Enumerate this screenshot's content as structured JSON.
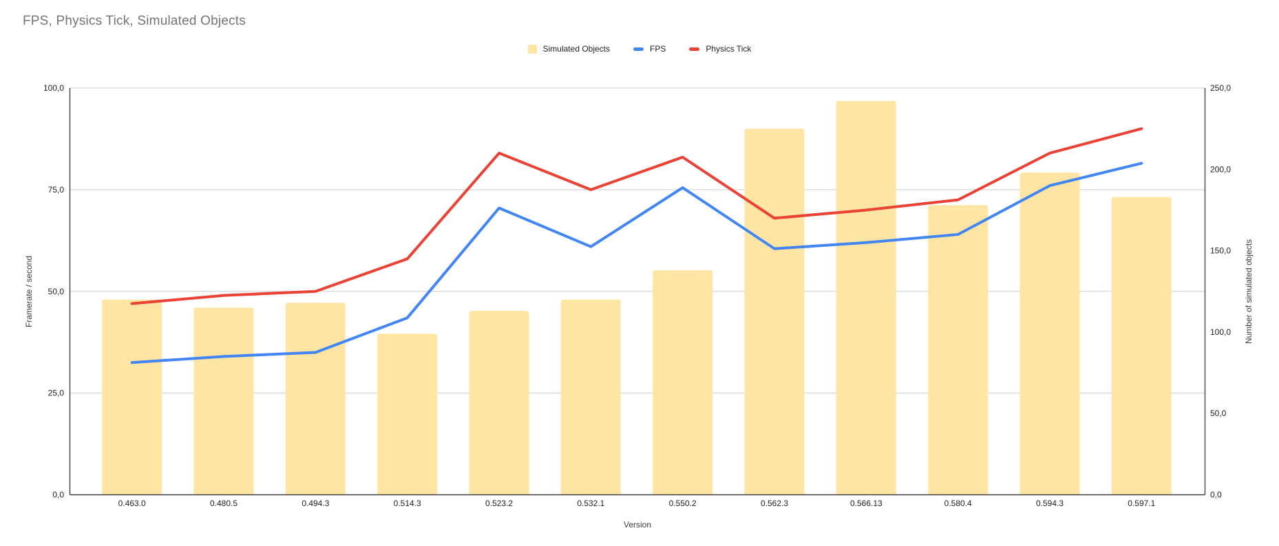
{
  "title": "FPS, Physics Tick, Simulated Objects",
  "chart_data": {
    "type": "combo",
    "x": [
      "0.463.0",
      "0.480.5",
      "0.494.3",
      "0.514.3",
      "0.523.2",
      "0.532.1",
      "0.550.2",
      "0.562.3",
      "0.566.13",
      "0.580.4",
      "0.594.3",
      "0.597.1"
    ],
    "xlabel": "Version",
    "ylabel_left": "Framerate / second",
    "ylabel_right": "Number of simulated objects",
    "y_left_range": [
      0,
      100
    ],
    "y_right_range": [
      0,
      250
    ],
    "y_left_ticks": [
      "0,0",
      "25,0",
      "50,0",
      "75,0",
      "100,0"
    ],
    "y_right_ticks": [
      "0,0",
      "50,0",
      "100,0",
      "150,0",
      "200,0",
      "250,0"
    ],
    "grid": "horizontal, left axis only",
    "legend_position": "top",
    "series": [
      {
        "name": "Simulated Objects",
        "type": "bar",
        "axis": "right",
        "color": "#ffe5a4",
        "values": [
          120,
          115,
          118,
          99,
          113,
          120,
          138,
          225,
          242,
          178,
          198,
          183
        ]
      },
      {
        "name": "FPS",
        "type": "line",
        "axis": "left",
        "color": "#4285f4",
        "values": [
          32.5,
          34,
          35,
          43.5,
          70.5,
          61,
          75.5,
          60.5,
          62,
          64,
          76,
          81.5
        ]
      },
      {
        "name": "Physics Tick",
        "type": "line",
        "axis": "left",
        "color": "#ea4335",
        "values": [
          47,
          49,
          50,
          58,
          84,
          75,
          83,
          68,
          70,
          72.5,
          84,
          90
        ]
      }
    ]
  },
  "colors": {
    "title_text": "#757575",
    "axis_text": "#222222",
    "axis_title_text": "#3c3c3c",
    "gridline": "#d6d6d6",
    "axis_line": "#424242",
    "background": "#ffffff"
  }
}
